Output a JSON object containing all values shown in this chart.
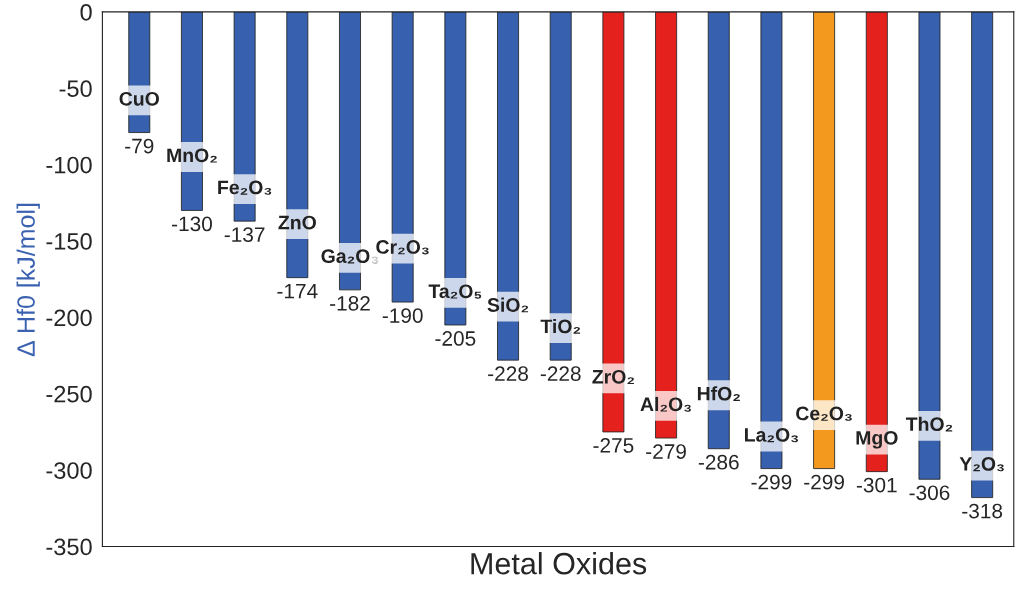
{
  "chart_data": {
    "type": "bar",
    "xlabel": "Metal Oxides",
    "ylabel": "∆ Hf0 [kJ/mol]",
    "categories": [
      "CuO",
      "MnO₂",
      "Fe₂O₃",
      "ZnO",
      "Ga₂O₃",
      "Cr₂O₃",
      "Ta₂O₅",
      "SiO₂",
      "TiO₂",
      "ZrO₂",
      "Al₂O₃",
      "HfO₂",
      "La₂O₃",
      "Ce₂O₃",
      "MgO",
      "ThO₂",
      "Y₂O₃"
    ],
    "values": [
      -79,
      -130,
      -137,
      -174,
      -182,
      -190,
      -205,
      -228,
      -228,
      -275,
      -279,
      -286,
      -299,
      -299,
      -301,
      -306,
      -318
    ],
    "colors": [
      "#3760ae",
      "#3760ae",
      "#3760ae",
      "#3760ae",
      "#3760ae",
      "#3760ae",
      "#3760ae",
      "#3760ae",
      "#3760ae",
      "#e5211d",
      "#e5211d",
      "#3760ae",
      "#3760ae",
      "#f39a1e",
      "#e5211d",
      "#3760ae",
      "#3760ae"
    ],
    "ylim": [
      -350,
      0
    ],
    "yticks": [
      0,
      -50,
      -100,
      -150,
      -200,
      -250,
      -300,
      -350
    ],
    "data_labels": true,
    "grid": false,
    "legend": false
  }
}
